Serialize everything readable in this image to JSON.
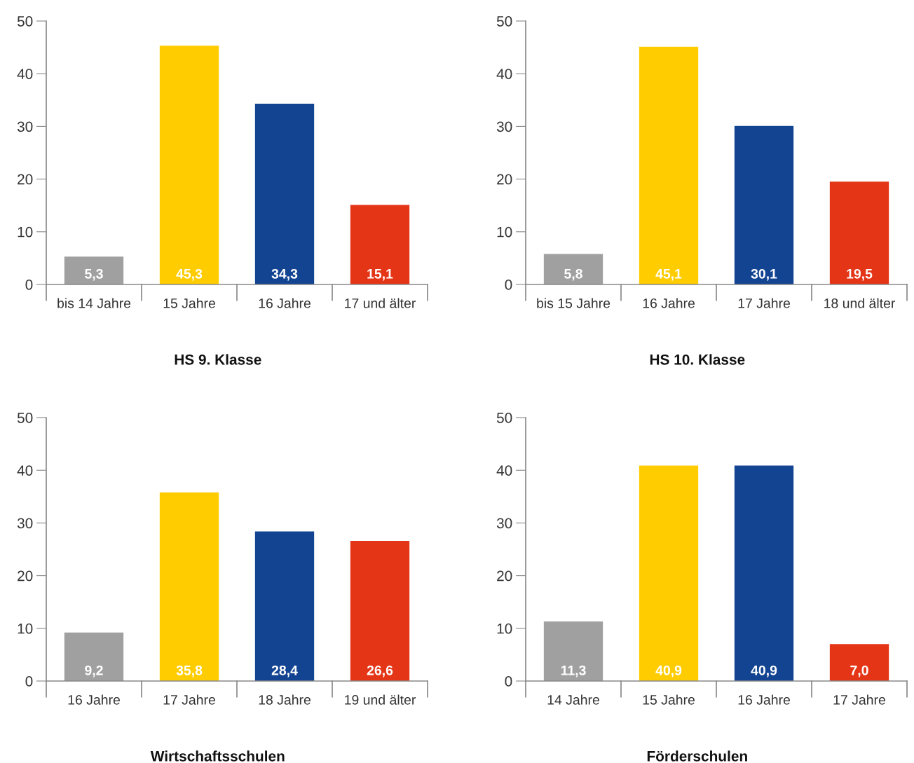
{
  "chart_data": [
    {
      "type": "bar",
      "title": "HS 9. Klasse",
      "categories": [
        "bis 14 Jahre",
        "15 Jahre",
        "16 Jahre",
        "17 und älter"
      ],
      "values": [
        5.3,
        45.3,
        34.3,
        15.1
      ],
      "value_labels": [
        "5,3",
        "45,3",
        "34,3",
        "15,1"
      ],
      "colors": [
        "#a0a0a0",
        "#ffcc00",
        "#134492",
        "#e53517"
      ],
      "ylim": [
        0,
        50
      ],
      "yticks": [
        0,
        10,
        20,
        30,
        40,
        50
      ],
      "grid": false,
      "legend": false
    },
    {
      "type": "bar",
      "title": "HS 10. Klasse",
      "categories": [
        "bis 15 Jahre",
        "16 Jahre",
        "17 Jahre",
        "18 und älter"
      ],
      "values": [
        5.8,
        45.1,
        30.1,
        19.5
      ],
      "value_labels": [
        "5,8",
        "45,1",
        "30,1",
        "19,5"
      ],
      "colors": [
        "#a0a0a0",
        "#ffcc00",
        "#134492",
        "#e53517"
      ],
      "ylim": [
        0,
        50
      ],
      "yticks": [
        0,
        10,
        20,
        30,
        40,
        50
      ],
      "grid": false,
      "legend": false
    },
    {
      "type": "bar",
      "title": "Wirtschaftsschulen",
      "categories": [
        "16 Jahre",
        "17 Jahre",
        "18 Jahre",
        "19 und älter"
      ],
      "values": [
        9.2,
        35.8,
        28.4,
        26.6
      ],
      "value_labels": [
        "9,2",
        "35,8",
        "28,4",
        "26,6"
      ],
      "colors": [
        "#a0a0a0",
        "#ffcc00",
        "#134492",
        "#e53517"
      ],
      "ylim": [
        0,
        50
      ],
      "yticks": [
        0,
        10,
        20,
        30,
        40,
        50
      ],
      "grid": false,
      "legend": false
    },
    {
      "type": "bar",
      "title": "Förderschulen",
      "categories": [
        "14 Jahre",
        "15 Jahre",
        "16 Jahre",
        "17 Jahre"
      ],
      "values": [
        11.3,
        40.9,
        40.9,
        7.0
      ],
      "value_labels": [
        "11,3",
        "40,9",
        "40,9",
        "7,0"
      ],
      "colors": [
        "#a0a0a0",
        "#ffcc00",
        "#134492",
        "#e53517"
      ],
      "ylim": [
        0,
        50
      ],
      "yticks": [
        0,
        10,
        20,
        30,
        40,
        50
      ],
      "grid": false,
      "legend": false
    }
  ]
}
